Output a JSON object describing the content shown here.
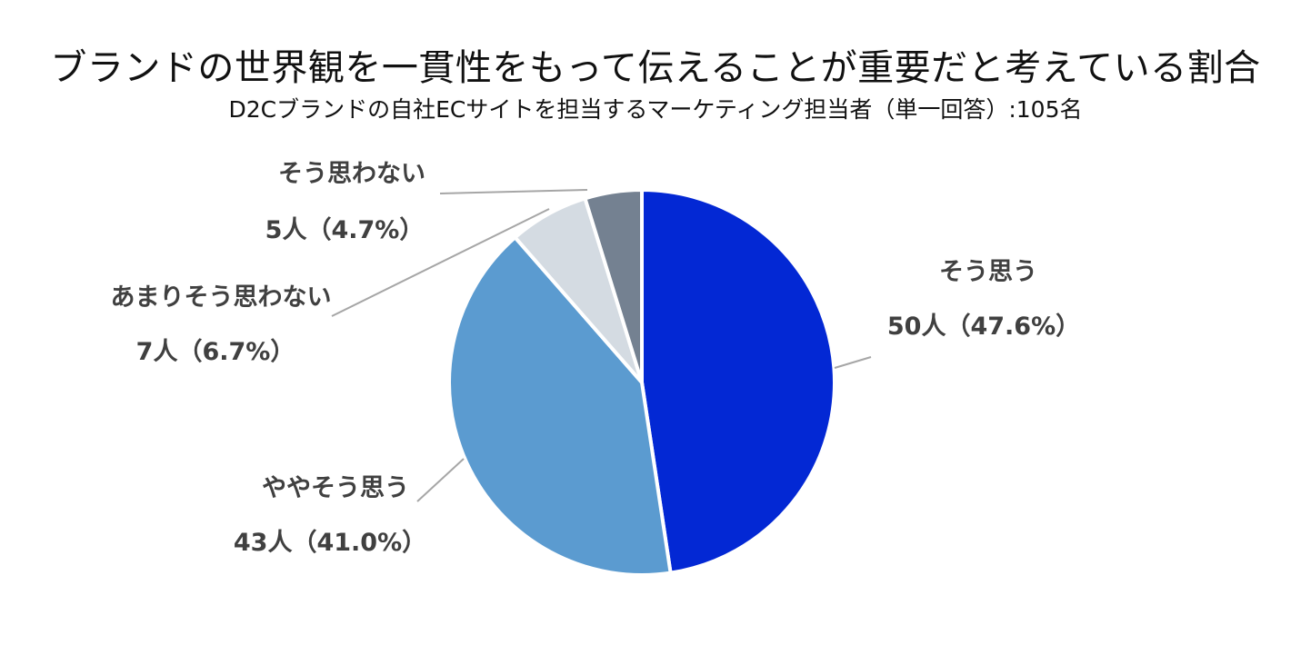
{
  "chart_data": {
    "type": "pie",
    "title": "ブランドの世界観を一貫性をもって伝えることが重要だと考えている割合",
    "subtitle": "D2Cブランドの自社ECサイトを担当するマーケティング担当者（単一回答）:105名",
    "start_angle_deg": 0,
    "direction": "clockwise",
    "slices": [
      {
        "label": "そう思う",
        "count_label": "50人（47.6%）",
        "count": 50,
        "percent": 47.6,
        "color": "#0328D4"
      },
      {
        "label": "ややそう思う",
        "count_label": "43人（41.0%）",
        "count": 43,
        "percent": 41.0,
        "color": "#5B9BD0"
      },
      {
        "label": "あまりそう思わない",
        "count_label": "7人（6.7%）",
        "count": 7,
        "percent": 6.7,
        "color": "#D4DBE2"
      },
      {
        "label": "そう思わない",
        "count_label": "5人（4.7%）",
        "count": 5,
        "percent": 4.7,
        "color": "#748191"
      }
    ],
    "leader_line_color": "#A6A6A6",
    "label_color": "#404040"
  }
}
